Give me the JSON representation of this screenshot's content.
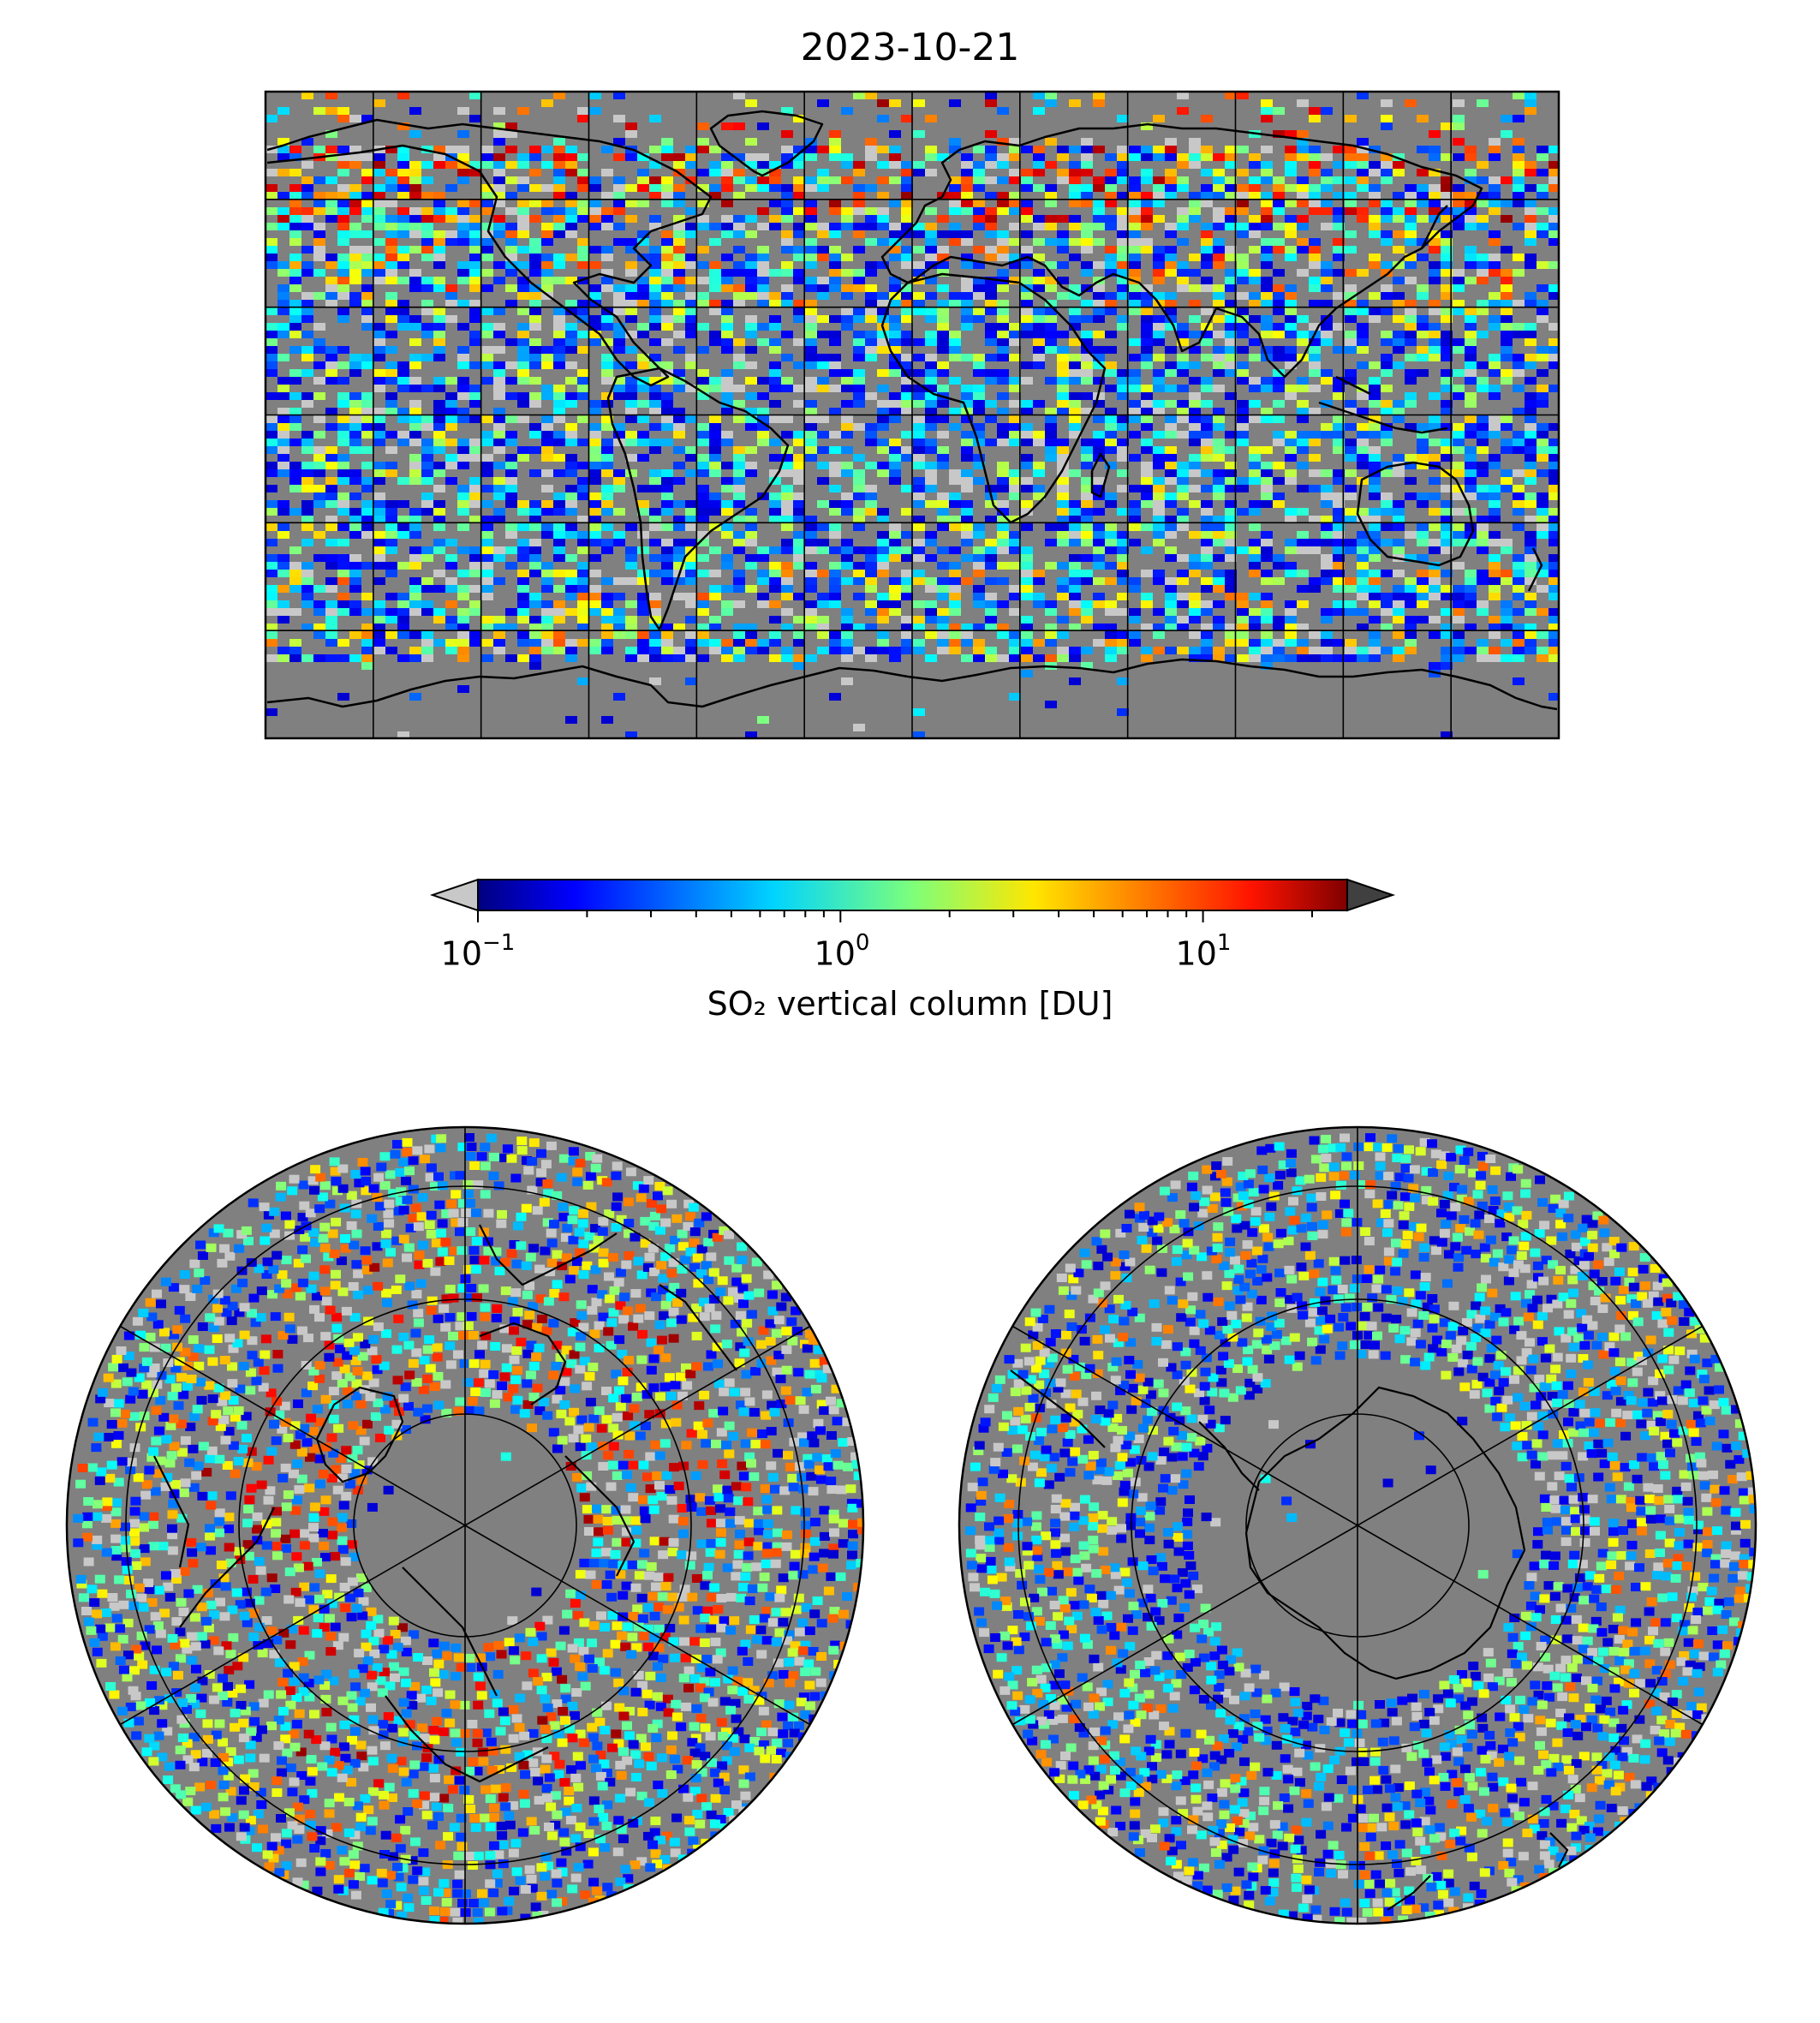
{
  "figure": {
    "title": "2023-10-21"
  },
  "colorbar": {
    "scale": "log",
    "vmin": 0.1,
    "vmax": 25,
    "colormap": "jet",
    "under_color": "#c8c8c8",
    "over_color": "#404040",
    "label": "SO₂ vertical column [DU]",
    "ticks": [
      {
        "base": "10",
        "exponent": "−1"
      },
      {
        "base": "10",
        "exponent": "0"
      },
      {
        "base": "10",
        "exponent": "1"
      }
    ]
  },
  "maps": {
    "background_color": "#808080",
    "gridline_color": "#000000",
    "panels": [
      {
        "name": "global",
        "projection": "plate-carree",
        "lon_range": [
          -180,
          180
        ],
        "lat_range": [
          -90,
          90
        ],
        "grid_spacing_deg": 30
      },
      {
        "name": "north-polar",
        "projection": "north-polar-stereographic",
        "grid_spacing_deg": 30
      },
      {
        "name": "south-polar",
        "projection": "south-polar-stereographic",
        "grid_spacing_deg": 30
      }
    ]
  }
}
